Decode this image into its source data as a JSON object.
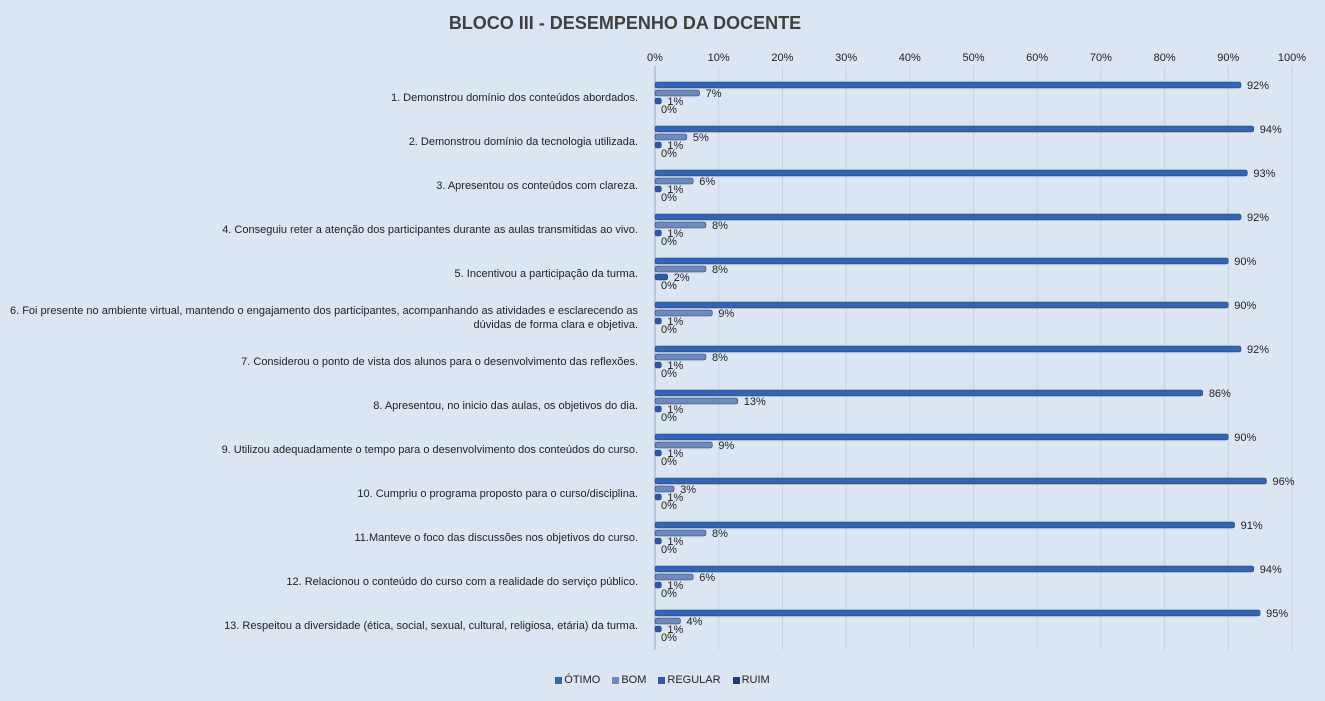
{
  "chart_data": {
    "type": "hbar-grouped",
    "title": "BLOCO III - DESEMPENHO  DA DOCENTE",
    "categories": [
      "1. Demonstrou domínio dos conteúdos abordados.",
      "2. Demonstrou domínio da tecnologia utilizada.",
      "3. Apresentou os conteúdos com clareza.",
      "4. Conseguiu reter a atenção dos participantes durante as aulas transmitidas ao vivo.",
      "5. Incentivou a participação da turma.",
      "6. Foi presente no ambiente virtual, mantendo o engajamento dos participantes, acompanhando as atividades e esclarecendo as dúvidas de forma clara e objetiva.",
      "7. Considerou o ponto de vista dos alunos para o desenvolvimento das reflexões.",
      "8. Apresentou, no inicio das aulas, os objetivos do dia.",
      "9. Utilizou adequadamente o tempo para o desenvolvimento dos conteúdos do curso.",
      "10. Cumpriu o programa proposto para o curso/disciplina.",
      "11.Manteve o foco das discussões nos objetivos do curso.",
      "12. Relacionou o conteúdo do curso com a realidade do serviço público.",
      "13. Respeitou a diversidade (ética, social, sexual, cultural, religiosa, etária) da turma."
    ],
    "series": [
      {
        "name": "ÓTIMO",
        "color": "#3465b4",
        "values": [
          92,
          94,
          93,
          92,
          90,
          90,
          92,
          86,
          90,
          96,
          91,
          94,
          95
        ],
        "value_labels": [
          "92%",
          "94%",
          "93%",
          "92%",
          "90%",
          "90%",
          "92%",
          "86%",
          "90%",
          "96%",
          "91%",
          "94%",
          "95%"
        ]
      },
      {
        "name": "BOM",
        "color": "#7089bb",
        "values": [
          7,
          5,
          6,
          8,
          8,
          9,
          8,
          13,
          9,
          3,
          8,
          6,
          4
        ],
        "value_labels": [
          "7%",
          "5%",
          "6%",
          "8%",
          "8%",
          "9%",
          "8%",
          "13%",
          "9%",
          "3%",
          "8%",
          "6%",
          "4%"
        ]
      },
      {
        "name": "REGULAR",
        "color": "#2e5aa8",
        "values": [
          1,
          1,
          1,
          1,
          2,
          1,
          1,
          1,
          1,
          1,
          1,
          1,
          1
        ],
        "value_labels": [
          "1%",
          "1%",
          "1%",
          "1%",
          "2%",
          "1%",
          "1%",
          "1%",
          "1%",
          "1%",
          "1%",
          "1%",
          "1%"
        ]
      },
      {
        "name": "RUIM",
        "color": "#1f3c78",
        "values": [
          0,
          0,
          0,
          0,
          0,
          0,
          0,
          0,
          0,
          0,
          0,
          0,
          0
        ],
        "value_labels": [
          "0%",
          "0%",
          "0%",
          "0%",
          "0%",
          "0%",
          "0%",
          "0%",
          "0%",
          "0%",
          "0%",
          "0%",
          "0%"
        ]
      }
    ],
    "xlim": [
      0,
      100
    ],
    "xticks": [
      {
        "value": 0,
        "label": "0%"
      },
      {
        "value": 10,
        "label": "10%"
      },
      {
        "value": 20,
        "label": "20%"
      },
      {
        "value": 30,
        "label": "30%"
      },
      {
        "value": 40,
        "label": "40%"
      },
      {
        "value": 50,
        "label": "50%"
      },
      {
        "value": 60,
        "label": "60%"
      },
      {
        "value": 70,
        "label": "70%"
      },
      {
        "value": 80,
        "label": "80%"
      },
      {
        "value": 90,
        "label": "90%"
      },
      {
        "value": 100,
        "label": "100%"
      }
    ],
    "grid": true
  }
}
